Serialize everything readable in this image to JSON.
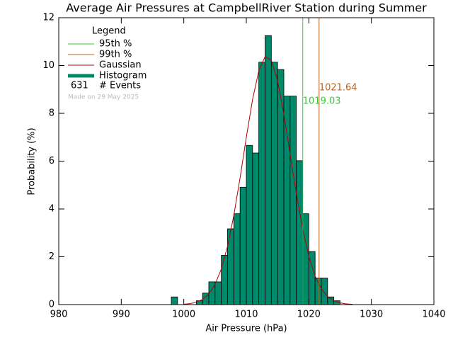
{
  "chart_data": {
    "type": "histogram",
    "title": "Average Air Pressures at CampbellRiver Station during Summer",
    "x_label": "Air Pressure (hPa)",
    "y_label": "Probability (%)",
    "bins": [
      997,
      998,
      999,
      1000,
      1001,
      1002,
      1003,
      1004,
      1005,
      1006,
      1007,
      1008,
      1009,
      1010,
      1011,
      1012,
      1013,
      1014,
      1015,
      1016,
      1017,
      1018,
      1019,
      1020,
      1021,
      1022,
      1023,
      1024,
      1025
    ],
    "values": [
      0.0,
      0.32,
      0.0,
      0.0,
      0.0,
      0.16,
      0.48,
      0.95,
      0.95,
      2.06,
      3.17,
      3.8,
      4.91,
      6.66,
      6.34,
      10.14,
      11.25,
      10.14,
      9.83,
      8.72,
      8.72,
      6.02,
      3.8,
      2.22,
      1.11,
      1.11,
      0.32,
      0.16
    ],
    "name": "Histogram",
    "color": "#008a6c",
    "gaussian": {
      "name": "Gaussian",
      "color": "#b00000",
      "x": [
        1000,
        1001,
        1002,
        1003,
        1004,
        1005,
        1006,
        1007,
        1008,
        1009,
        1010,
        1011,
        1012,
        1013,
        1014,
        1015,
        1016,
        1017,
        1018,
        1019,
        1020,
        1021,
        1022,
        1023,
        1024,
        1025,
        1026,
        1027
      ],
      "values": [
        0.016,
        0.042,
        0.098,
        0.218,
        0.44,
        0.84,
        1.49,
        2.44,
        3.73,
        5.3,
        7.0,
        8.58,
        9.78,
        10.37,
        10.22,
        9.36,
        7.97,
        6.31,
        4.65,
        3.18,
        2.02,
        1.19,
        0.66,
        0.335,
        0.159,
        0.07,
        0.029,
        0.011
      ]
    },
    "percentiles": [
      {
        "name": "95th %",
        "color": "#33cc33",
        "value": 1019.03
      },
      {
        "name": "99th %",
        "color": "#b5651d",
        "value": 1021.64
      }
    ],
    "legend_title": "Legend",
    "events": {
      "count": 631,
      "label": "# Events"
    },
    "made_on": "Made on 29 May 2025",
    "xlim": [
      980,
      1040
    ],
    "xticks": [
      980,
      990,
      1000,
      1010,
      1020,
      1030,
      1040
    ],
    "ylim": [
      0,
      12
    ],
    "yticks": [
      0,
      2,
      4,
      6,
      8,
      10,
      12
    ]
  }
}
